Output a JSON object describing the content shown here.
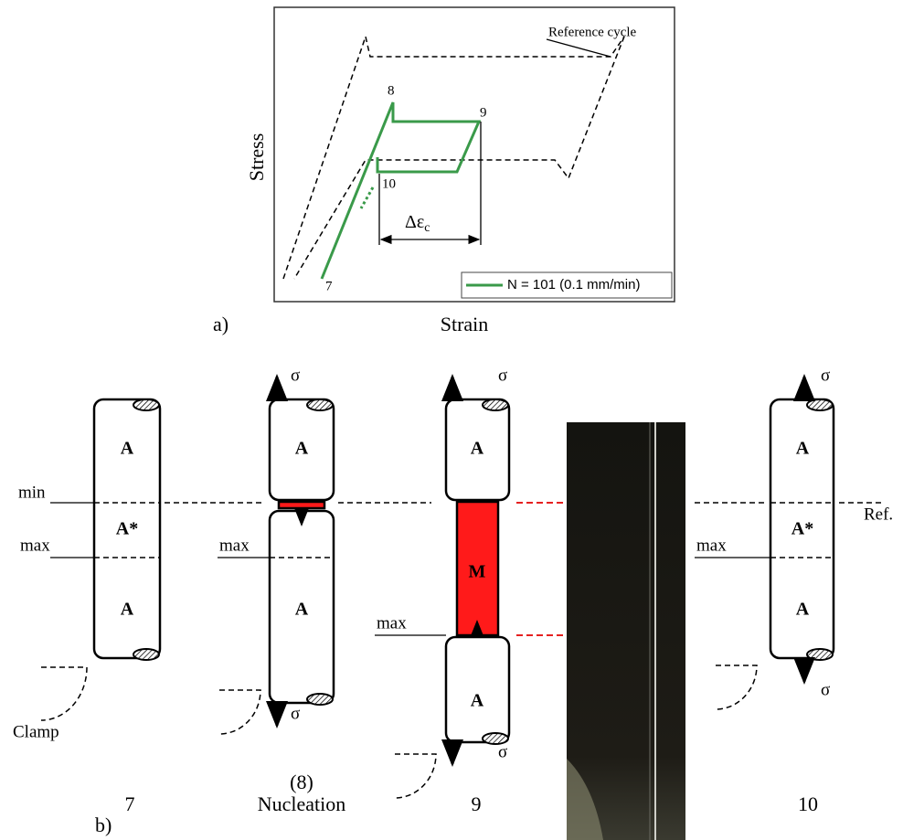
{
  "panel_a": {
    "label": "a)",
    "y_label": "Stress",
    "x_label": "Strain",
    "reference_label": "Reference cycle",
    "points": [
      "8",
      "9",
      "10",
      "7"
    ],
    "delta_symbol": "Δε",
    "delta_subscript": "c",
    "legend": "N = 101 (0.1 mm/min)"
  },
  "panel_b": {
    "label": "b)",
    "stress_symbol": "σ",
    "ref_label": "Ref.",
    "specimens": [
      {
        "caption": "7",
        "zones": [
          "A",
          "A*",
          "A"
        ],
        "levels": [
          "min",
          "max"
        ],
        "clamp": "Clamp"
      },
      {
        "caption": "(8)",
        "subtitle": "Nucleation",
        "zones": [
          "A",
          "A"
        ],
        "levels": [
          "max"
        ]
      },
      {
        "caption": "9",
        "zones": [
          "A",
          "M",
          "A"
        ],
        "levels": [
          "max"
        ]
      },
      {
        "caption": "10",
        "zones": [
          "A",
          "A*",
          "A"
        ],
        "levels": [
          "max"
        ]
      }
    ]
  }
}
